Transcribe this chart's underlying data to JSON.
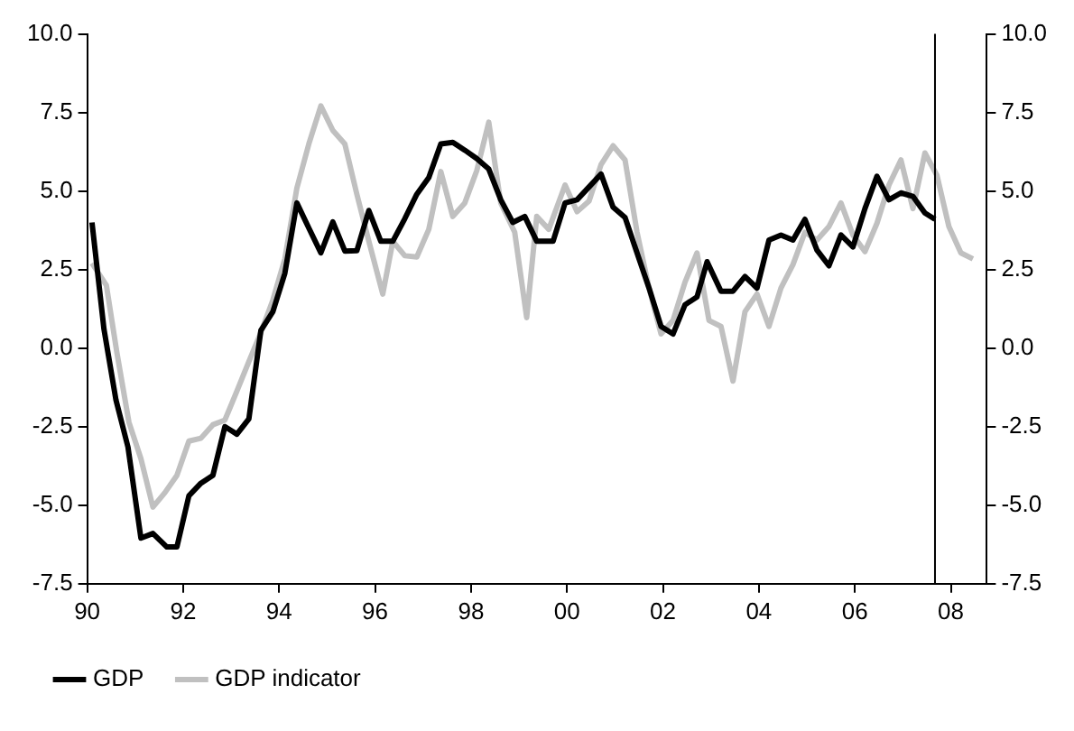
{
  "chart_data": {
    "type": "line",
    "xlim": [
      1990,
      2008.75
    ],
    "xticks": [
      {
        "value": 1990,
        "label": "90"
      },
      {
        "value": 1992,
        "label": "92"
      },
      {
        "value": 1994,
        "label": "94"
      },
      {
        "value": 1996,
        "label": "96"
      },
      {
        "value": 1998,
        "label": "98"
      },
      {
        "value": 2000,
        "label": "00"
      },
      {
        "value": 2002,
        "label": "02"
      },
      {
        "value": 2004,
        "label": "04"
      },
      {
        "value": 2006,
        "label": "06"
      },
      {
        "value": 2008,
        "label": "08"
      }
    ],
    "ylim": [
      -7.5,
      10
    ],
    "yticks": [
      {
        "value": -7.5,
        "label": "-7.5"
      },
      {
        "value": -5,
        "label": "-5.0"
      },
      {
        "value": -2.5,
        "label": "-2.5"
      },
      {
        "value": 0,
        "label": "0.0"
      },
      {
        "value": 2.5,
        "label": "2.5"
      },
      {
        "value": 5,
        "label": "5.0"
      },
      {
        "value": 7.5,
        "label": "7.5"
      },
      {
        "value": 10,
        "label": "10.0"
      }
    ],
    "y2lim": [
      -7.5,
      10
    ],
    "y2ticks": [
      {
        "value": -7.5,
        "label": "-7.5"
      },
      {
        "value": -5,
        "label": "-5.0"
      },
      {
        "value": -2.5,
        "label": "-2.5"
      },
      {
        "value": 0,
        "label": "0.0"
      },
      {
        "value": 2.5,
        "label": "2.5"
      },
      {
        "value": 5,
        "label": "5.0"
      },
      {
        "value": 7.5,
        "label": "7.5"
      },
      {
        "value": 10,
        "label": "10.0"
      }
    ],
    "grid": false,
    "legend": "bottom",
    "marker": "none",
    "line_style": "solid",
    "ref_lines": [
      {
        "axis": "x",
        "value": 2007.67,
        "color": "#000000"
      }
    ],
    "series": [
      {
        "name": "GDP",
        "color": "#000000",
        "x": [
          1990.1,
          1990.35,
          1990.6,
          1990.85,
          1991.12,
          1991.37,
          1991.66,
          1991.87,
          1992.12,
          1992.37,
          1992.62,
          1992.87,
          1993.12,
          1993.37,
          1993.62,
          1993.87,
          1994.12,
          1994.37,
          1994.62,
          1994.87,
          1995.12,
          1995.37,
          1995.62,
          1995.87,
          1996.12,
          1996.37,
          1996.62,
          1996.87,
          1997.12,
          1997.37,
          1997.62,
          1997.87,
          1998.12,
          1998.37,
          1998.62,
          1998.87,
          1999.12,
          1999.37,
          1999.71,
          1999.96,
          2000.21,
          2000.46,
          2000.71,
          2000.96,
          2001.21,
          2001.46,
          2001.71,
          2001.96,
          2002.21,
          2002.46,
          2002.71,
          2002.92,
          2003.21,
          2003.46,
          2003.71,
          2003.96,
          2004.21,
          2004.46,
          2004.71,
          2004.96,
          2005.21,
          2005.46,
          2005.71,
          2005.96,
          2006.21,
          2006.46,
          2006.71,
          2006.96,
          2007.21,
          2007.46,
          2007.67
        ],
        "values": [
          4.0,
          0.6,
          -1.65,
          -3.15,
          -6.05,
          -5.9,
          -6.33,
          -6.33,
          -4.7,
          -4.3,
          -4.05,
          -2.5,
          -2.74,
          -2.25,
          0.56,
          1.16,
          2.38,
          4.62,
          3.82,
          3.03,
          4.02,
          3.09,
          3.1,
          4.38,
          3.4,
          3.4,
          4.12,
          4.9,
          5.43,
          6.5,
          6.55,
          6.3,
          6.03,
          5.7,
          4.72,
          4.0,
          4.19,
          3.4,
          3.4,
          4.62,
          4.72,
          5.13,
          5.54,
          4.49,
          4.16,
          3.03,
          1.91,
          0.69,
          0.45,
          1.38,
          1.63,
          2.75,
          1.81,
          1.81,
          2.28,
          1.91,
          3.44,
          3.6,
          3.44,
          4.1,
          3.12,
          2.62,
          3.6,
          3.22,
          4.44,
          5.47,
          4.72,
          4.94,
          4.83,
          4.3,
          4.1
        ]
      },
      {
        "name": "GDP indicator",
        "color": "#c0c0c0",
        "x": [
          1990.1,
          1990.4,
          1990.62,
          1990.87,
          1991.12,
          1991.37,
          1991.62,
          1991.87,
          1992.12,
          1992.37,
          1992.62,
          1992.87,
          1993.12,
          1993.37,
          1993.62,
          1993.87,
          1994.12,
          1994.37,
          1994.62,
          1994.87,
          1995.12,
          1995.37,
          1995.62,
          1995.87,
          1996.16,
          1996.37,
          1996.62,
          1996.87,
          1997.12,
          1997.37,
          1997.62,
          1997.87,
          1998.12,
          1998.37,
          1998.62,
          1998.91,
          1999.16,
          1999.37,
          1999.62,
          1999.96,
          2000.21,
          2000.46,
          2000.71,
          2000.96,
          2001.21,
          2001.46,
          2001.71,
          2001.96,
          2002.21,
          2002.46,
          2002.71,
          2002.96,
          2003.21,
          2003.46,
          2003.71,
          2003.96,
          2004.21,
          2004.46,
          2004.71,
          2004.96,
          2005.21,
          2005.46,
          2005.71,
          2005.96,
          2006.21,
          2006.46,
          2006.71,
          2006.96,
          2007.21,
          2007.46,
          2007.71,
          2007.96,
          2008.21,
          2008.46
        ],
        "values": [
          2.7,
          2.0,
          -0.15,
          -2.36,
          -3.52,
          -5.06,
          -4.6,
          -4.05,
          -2.96,
          -2.87,
          -2.44,
          -2.29,
          -1.37,
          -0.43,
          0.5,
          1.53,
          2.84,
          5.09,
          6.5,
          7.71,
          6.93,
          6.5,
          4.9,
          3.4,
          1.72,
          3.4,
          2.94,
          2.9,
          3.78,
          5.62,
          4.19,
          4.62,
          5.65,
          7.19,
          4.62,
          3.69,
          0.97,
          4.19,
          3.78,
          5.19,
          4.34,
          4.68,
          5.84,
          6.44,
          5.99,
          3.69,
          1.91,
          0.45,
          0.88,
          2.1,
          3.03,
          0.88,
          0.69,
          -1.05,
          1.16,
          1.72,
          0.69,
          1.91,
          2.66,
          3.69,
          3.44,
          3.87,
          4.62,
          3.6,
          3.07,
          3.97,
          5.19,
          5.99,
          4.44,
          6.21,
          5.5,
          3.87,
          3.03,
          2.84
        ]
      }
    ]
  }
}
